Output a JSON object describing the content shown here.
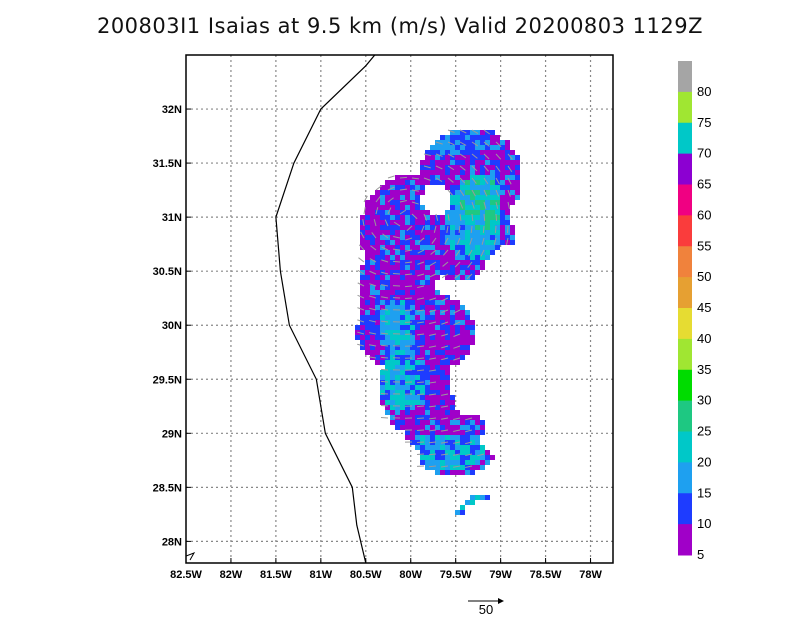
{
  "title": "200803I1 Isaias at 9.5 km (m/s) Valid 20200803 1129Z",
  "map": {
    "lon_range": [
      -82.5,
      -77.75
    ],
    "lat_range": [
      27.8,
      32.5
    ],
    "lon_ticks": [
      {
        "value": -82.5,
        "label": "82.5W"
      },
      {
        "value": -82.0,
        "label": "82W"
      },
      {
        "value": -81.5,
        "label": "81.5W"
      },
      {
        "value": -81.0,
        "label": "81W"
      },
      {
        "value": -80.5,
        "label": "80.5W"
      },
      {
        "value": -80.0,
        "label": "80W"
      },
      {
        "value": -79.5,
        "label": "79.5W"
      },
      {
        "value": -79.0,
        "label": "79W"
      },
      {
        "value": -78.5,
        "label": "78.5W"
      },
      {
        "value": -78.0,
        "label": "78W"
      }
    ],
    "lat_ticks": [
      {
        "value": 32.0,
        "label": "32N"
      },
      {
        "value": 31.5,
        "label": "31.5N"
      },
      {
        "value": 31.0,
        "label": "31N"
      },
      {
        "value": 30.5,
        "label": "30.5N"
      },
      {
        "value": 30.0,
        "label": "30N"
      },
      {
        "value": 29.5,
        "label": "29.5N"
      },
      {
        "value": 29.0,
        "label": "29N"
      },
      {
        "value": 28.5,
        "label": "28.5N"
      },
      {
        "value": 28.0,
        "label": "28N"
      }
    ],
    "grid": true,
    "coastline": [
      [
        -80.4,
        32.5
      ],
      [
        -80.5,
        32.4
      ],
      [
        -81.0,
        32.0
      ],
      [
        -81.3,
        31.5
      ],
      [
        -81.5,
        31.0
      ],
      [
        -81.45,
        30.5
      ],
      [
        -81.35,
        30.0
      ],
      [
        -81.05,
        29.5
      ],
      [
        -80.95,
        29.0
      ],
      [
        -80.65,
        28.5
      ],
      [
        -80.6,
        28.15
      ],
      [
        -80.5,
        27.8
      ]
    ],
    "colors": {
      "frame": "#000000",
      "grid": "#888888",
      "coast": "#000000",
      "arrow": "#9a9a9a"
    }
  },
  "colorbar": {
    "labels": [
      "80",
      "75",
      "70",
      "65",
      "60",
      "55",
      "50",
      "45",
      "40",
      "35",
      "30",
      "25",
      "20",
      "15",
      "10",
      "5"
    ],
    "colors": [
      "#a5a5a5",
      "#a0e632",
      "#00c8c8",
      "#8c00d2",
      "#f00082",
      "#fa3c3c",
      "#f0823c",
      "#e6a032",
      "#e6dc32",
      "#a0e632",
      "#00dc00",
      "#1ec882",
      "#00c8c8",
      "#1ea0f0",
      "#1e3cff",
      "#a000c8"
    ]
  },
  "reference_vector": {
    "label": "50"
  }
}
